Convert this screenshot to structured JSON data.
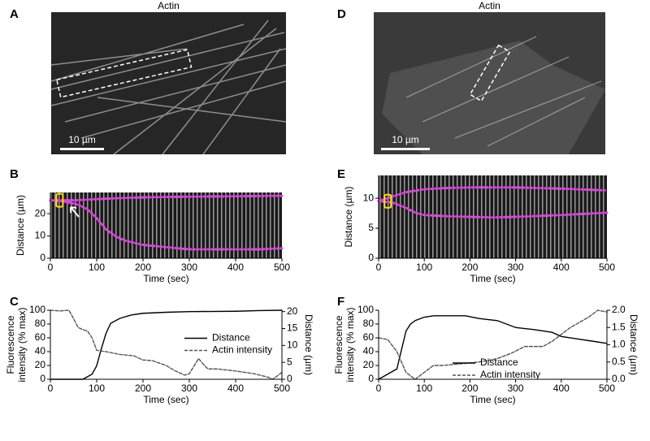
{
  "images": [
    {
      "panel": "A",
      "title": "Actin",
      "scale_bar": "10 µm"
    },
    {
      "panel": "D",
      "title": "Actin",
      "scale_bar": "10 µm"
    }
  ],
  "chart_data": [
    {
      "type": "kymograph",
      "panel": "B",
      "xlabel": "Time (sec)",
      "ylabel": [
        "Distance (µm)"
      ],
      "xlim": [
        0,
        500
      ],
      "xticks": [
        0,
        100,
        200,
        300,
        400,
        500
      ],
      "ylim": [
        0,
        29.5
      ],
      "yticks": [
        0,
        10,
        20
      ],
      "series": [
        {
          "color": "#e040e0",
          "style": "dotted",
          "x": [
            0,
            50,
            100,
            150,
            200,
            250,
            300,
            350,
            400,
            450,
            500
          ],
          "values": [
            26,
            26,
            26.5,
            27,
            27.3,
            27.5,
            27.6,
            27.7,
            27.8,
            27.9,
            28
          ]
        },
        {
          "color": "#e040e0",
          "style": "dotted",
          "x": [
            0,
            30,
            60,
            80,
            100,
            120,
            140,
            160,
            180,
            200,
            250,
            300,
            350,
            400,
            450,
            500
          ],
          "values": [
            26,
            25.5,
            24,
            22,
            18,
            13,
            10,
            8,
            7,
            6,
            5,
            4,
            4,
            4,
            4,
            4.5
          ]
        }
      ]
    },
    {
      "type": "kymograph",
      "panel": "E",
      "xlabel": "Time (sec)",
      "ylabel": [
        "Distance (µm)"
      ],
      "xlim": [
        0,
        500
      ],
      "xticks": [
        0,
        100,
        200,
        300,
        400,
        500
      ],
      "ylim": [
        0,
        13.8
      ],
      "yticks": [
        0,
        5,
        10
      ],
      "series": [
        {
          "color": "#e040e0",
          "style": "dotted",
          "x": [
            0,
            30,
            60,
            100,
            150,
            200,
            300,
            400,
            500
          ],
          "values": [
            9.5,
            10.3,
            11,
            11.5,
            11.7,
            11.8,
            11.8,
            11.6,
            11.3
          ]
        },
        {
          "color": "#e040e0",
          "style": "dotted",
          "x": [
            0,
            30,
            60,
            80,
            100,
            150,
            200,
            250,
            300,
            400,
            500
          ],
          "values": [
            9.5,
            9.3,
            8.4,
            7.6,
            7.2,
            7,
            6.9,
            6.8,
            6.9,
            7.2,
            7.6
          ]
        }
      ]
    },
    {
      "type": "line",
      "panel": "C",
      "xlabel": "Time (sec)",
      "ylabel": [
        "Fluorescence",
        "intensity (% max)"
      ],
      "y2label": "Distance (µm)",
      "xlim": [
        0,
        500
      ],
      "xticks": [
        0,
        100,
        200,
        300,
        400,
        500
      ],
      "ylim": [
        0,
        100
      ],
      "yticks": [
        0,
        20,
        40,
        60,
        80,
        100
      ],
      "y2lim": [
        0,
        20.4
      ],
      "y2ticks": [
        0,
        5,
        10,
        15,
        20
      ],
      "legend": "center right",
      "series": [
        {
          "name": "Distance",
          "color": "#000000",
          "style": "solid",
          "axis": "y2",
          "x": [
            0,
            70,
            90,
            100,
            110,
            120,
            130,
            150,
            175,
            200,
            250,
            300,
            400,
            450,
            500
          ],
          "values": [
            0,
            0,
            1.5,
            4,
            9,
            13.5,
            16.5,
            18,
            19,
            19.5,
            19.8,
            20,
            20.1,
            20.3,
            20.4
          ]
        },
        {
          "name": "Actin intensity",
          "color": "#555555",
          "style": "dashed",
          "x": [
            0,
            20,
            40,
            50,
            60,
            70,
            80,
            90,
            100,
            120,
            150,
            180,
            200,
            220,
            250,
            270,
            290,
            300,
            320,
            330,
            340,
            360,
            400,
            440,
            470,
            480,
            500
          ],
          "values": [
            100,
            99,
            100,
            88,
            75,
            72,
            70,
            60,
            42,
            40,
            36,
            34,
            28,
            27,
            20,
            12,
            6,
            8,
            30,
            22,
            15,
            15,
            12,
            8,
            3,
            0,
            10
          ]
        }
      ]
    },
    {
      "type": "line",
      "panel": "F",
      "xlabel": "Time (sec)",
      "ylabel": [
        "Fluorescence",
        "intensity (% max)"
      ],
      "y2label": "Distance (µm)",
      "xlim": [
        0,
        500
      ],
      "xticks": [
        0,
        100,
        200,
        300,
        400,
        500
      ],
      "ylim": [
        0,
        100
      ],
      "yticks": [
        0,
        20,
        40,
        60,
        80,
        100
      ],
      "y2lim": [
        0,
        2
      ],
      "y2ticks": [
        {
          "value": 0,
          "label": "0.0"
        },
        0.5,
        {
          "value": 1,
          "label": "1.0"
        },
        1.5,
        {
          "value": 2,
          "label": "2.0"
        }
      ],
      "legend": "lower right",
      "series": [
        {
          "name": "Distance",
          "color": "#000000",
          "style": "solid",
          "x": [
            0,
            40,
            60,
            70,
            80,
            100,
            120,
            190,
            220,
            260,
            280,
            300,
            340,
            380,
            400,
            440,
            470,
            500
          ],
          "values": [
            0,
            15,
            70,
            80,
            85,
            90,
            92,
            92,
            88,
            85,
            80,
            75,
            72,
            68,
            62,
            58,
            55,
            52
          ]
        },
        {
          "name": "Actin intensity",
          "color": "#555555",
          "style": "dashed",
          "axis": "y2",
          "x": [
            0,
            20,
            40,
            60,
            80,
            100,
            120,
            140,
            180,
            220,
            260,
            290,
            320,
            360,
            380,
            420,
            460,
            480,
            500
          ],
          "values": [
            1.2,
            1.15,
            0.8,
            0.2,
            0,
            0.2,
            0.4,
            0.4,
            0.45,
            0.5,
            0.6,
            0.75,
            0.95,
            0.95,
            1.1,
            1.5,
            1.8,
            2,
            1.95
          ]
        }
      ]
    }
  ]
}
